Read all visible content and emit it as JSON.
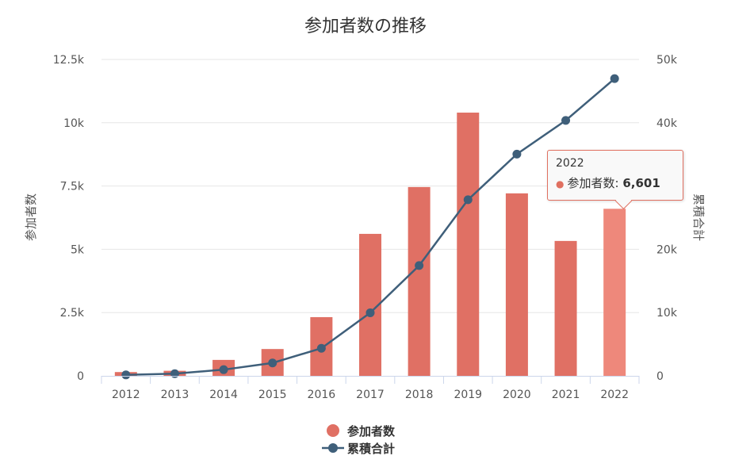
{
  "chart_data": {
    "type": "bar+line",
    "title": "参加者数の推移",
    "categories": [
      "2012",
      "2013",
      "2014",
      "2015",
      "2016",
      "2017",
      "2018",
      "2019",
      "2020",
      "2021",
      "2022"
    ],
    "series": [
      {
        "name": "参加者数",
        "type": "bar",
        "axis": "left",
        "color": "#e07064",
        "values": [
          150,
          200,
          630,
          1060,
          2320,
          5610,
          7460,
          10400,
          7210,
          5330,
          6601
        ]
      },
      {
        "name": "累積合計",
        "type": "line",
        "axis": "right",
        "color": "#3f5f7a",
        "values": [
          150,
          350,
          980,
          2040,
          4360,
          9970,
          17430,
          27830,
          35040,
          40370,
          46971
        ]
      }
    ],
    "ylabel": "参加者数",
    "y2label": "累積合計",
    "ylim": [
      0,
      12500
    ],
    "y2lim": [
      0,
      50000
    ],
    "yticks": [
      "0",
      "2.5k",
      "5k",
      "7.5k",
      "10k",
      "12.5k"
    ],
    "y2ticks": [
      "0",
      "10k",
      "20k",
      "30k",
      "40k",
      "50k"
    ],
    "legend": "bottom-center",
    "grid": true,
    "highlight_index": 10,
    "highlight_color": "#ee887b"
  },
  "tooltip": {
    "header": "2022",
    "label": "参加者数:",
    "value": "6,601"
  }
}
